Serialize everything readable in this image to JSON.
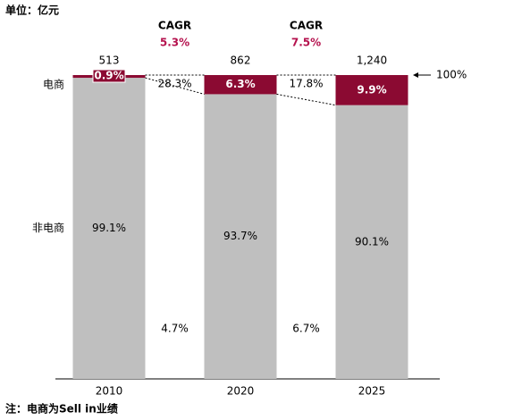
{
  "chart_data": {
    "type": "stacked_bar_100",
    "unit_label": "单位：亿元",
    "note": "注：电商为Sell in业绩",
    "categories": [
      "2010",
      "2020",
      "2025"
    ],
    "totals": [
      513,
      862,
      1240
    ],
    "total_labels": [
      "513",
      "862",
      "1,240"
    ],
    "series": [
      {
        "name": "非电商",
        "color": "#bfbfbf",
        "values": [
          99.1,
          93.7,
          90.1
        ],
        "value_labels": [
          "99.1%",
          "93.7%",
          "90.1%"
        ]
      },
      {
        "name": "电商",
        "color": "#8b0a32",
        "values": [
          0.9,
          6.3,
          9.9
        ],
        "value_labels": [
          "0.9%",
          "6.3%",
          "9.9%"
        ]
      }
    ],
    "ylim": [
      0,
      100
    ],
    "yticks": [
      {
        "value": 100,
        "label": "100%"
      }
    ],
    "cagr": [
      {
        "title": "CAGR",
        "total": "5.3%",
        "ecommerce": "28.3%",
        "non_ecommerce": "4.7%"
      },
      {
        "title": "CAGR",
        "total": "7.5%",
        "ecommerce": "17.8%",
        "non_ecommerce": "6.7%"
      }
    ]
  }
}
